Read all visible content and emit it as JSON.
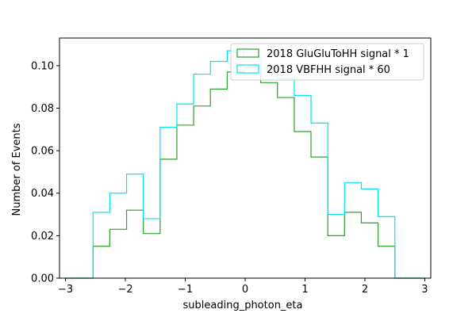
{
  "chart_data": {
    "type": "step-histogram",
    "xlabel": "subleading_photon_eta",
    "ylabel": "Number of Events",
    "xlim": [
      -3.1,
      3.1
    ],
    "ylim": [
      0,
      0.113
    ],
    "xticks": [
      -3,
      -2,
      -1,
      0,
      1,
      2,
      3
    ],
    "xtick_labels": [
      "−3",
      "−2",
      "−1",
      "0",
      "1",
      "2",
      "3"
    ],
    "yticks": [
      0.0,
      0.02,
      0.04,
      0.06,
      0.08,
      0.1
    ],
    "ytick_labels": [
      "0.00",
      "0.02",
      "0.04",
      "0.06",
      "0.08",
      "0.10"
    ],
    "bin_edges": [
      -3.0,
      -2.72,
      -2.54,
      -2.26,
      -1.98,
      -1.7,
      -1.42,
      -1.14,
      -0.86,
      -0.58,
      -0.3,
      -0.02,
      0.26,
      0.54,
      0.82,
      1.1,
      1.38,
      1.66,
      1.94,
      2.22,
      2.5,
      2.78,
      3.0
    ],
    "series": [
      {
        "name": "2018 GluGluToHH signal * 1",
        "color": "#2ca02c",
        "values": [
          0.0,
          0.0,
          0.015,
          0.023,
          0.032,
          0.021,
          0.056,
          0.072,
          0.081,
          0.089,
          0.097,
          0.099,
          0.092,
          0.085,
          0.069,
          0.057,
          0.02,
          0.031,
          0.026,
          0.015,
          0.0,
          0.0
        ]
      },
      {
        "name": "2018 VBFHH signal * 60",
        "color": "#00e5ee",
        "values": [
          0.0,
          0.0,
          0.031,
          0.04,
          0.049,
          0.028,
          0.071,
          0.082,
          0.096,
          0.102,
          0.107,
          0.104,
          0.099,
          0.094,
          0.086,
          0.073,
          0.03,
          0.045,
          0.042,
          0.029,
          0.0,
          0.0
        ]
      }
    ],
    "legend_placement": "top-right",
    "grid": false
  }
}
